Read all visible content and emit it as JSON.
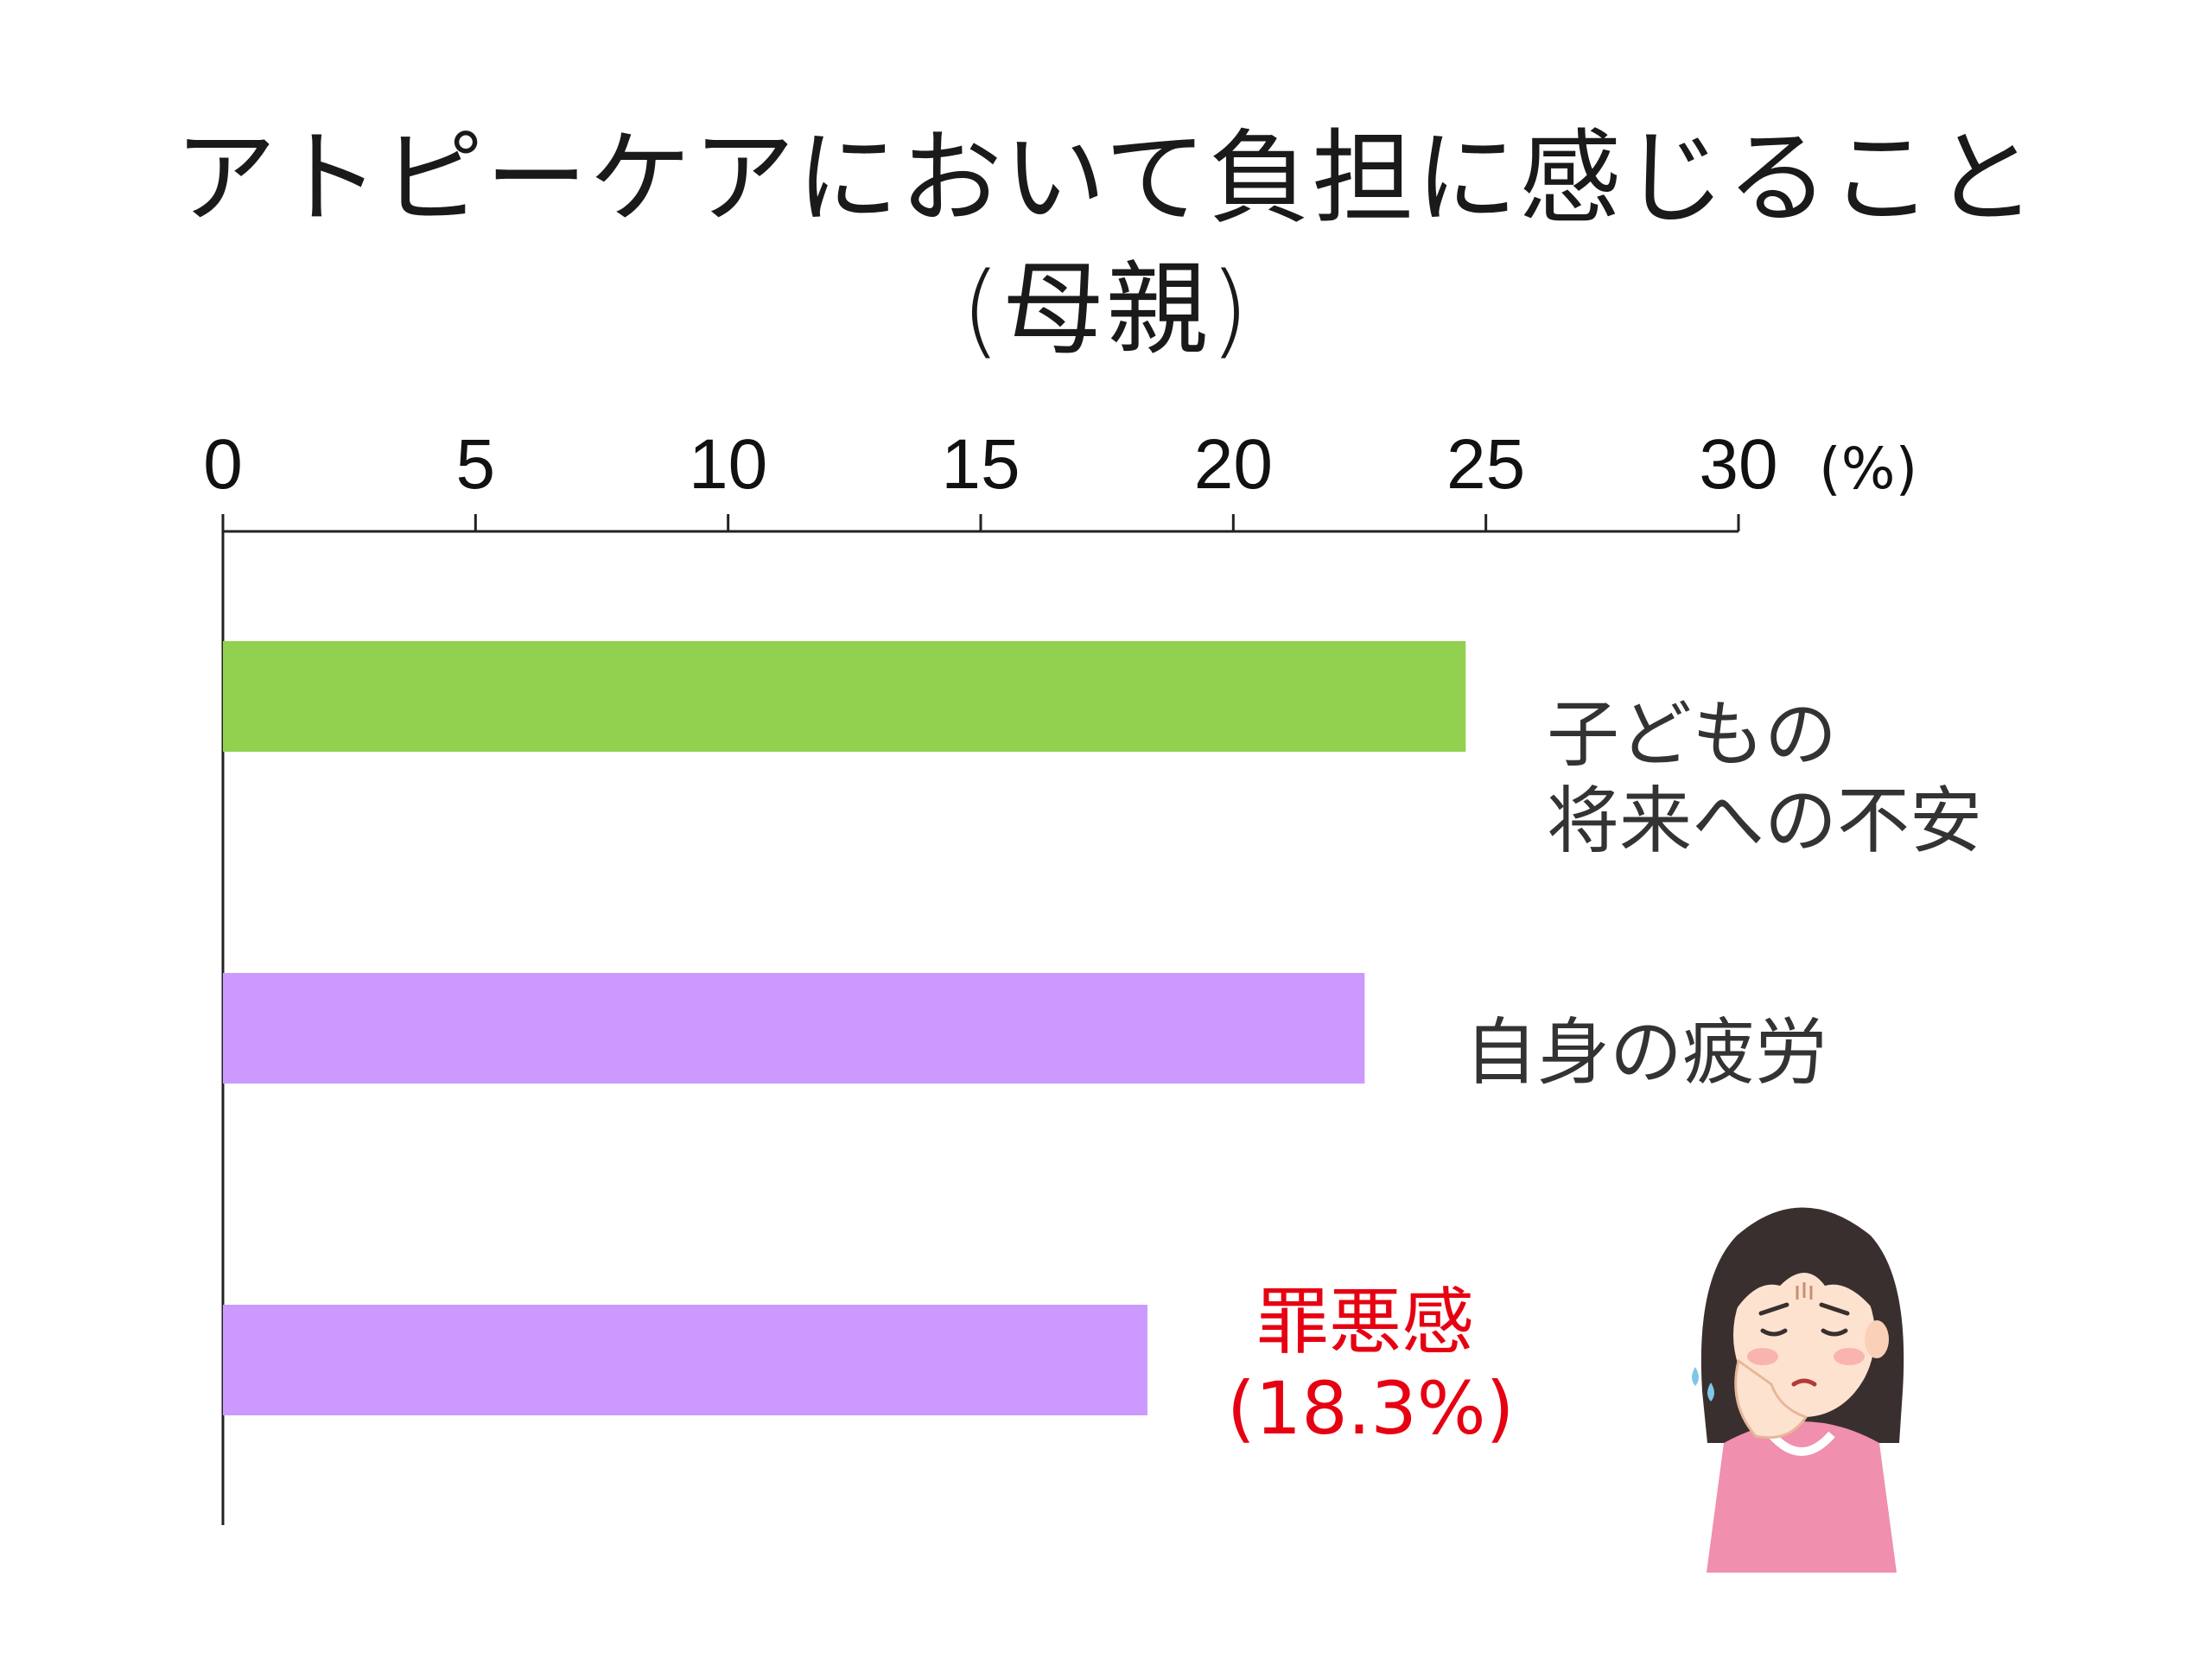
{
  "title": {
    "line1": "アトピーケアにおいて負担に感じること",
    "line2": "(母親)"
  },
  "chart_data": {
    "type": "bar",
    "orientation": "horizontal",
    "categories": [
      "子どもの将来への不安",
      "自身の疲労",
      "罪悪感"
    ],
    "category_lines": [
      [
        "子どもの",
        "将来への不安"
      ],
      [
        "自身の疲労"
      ],
      [
        "罪悪感",
        "(18.3%)"
      ]
    ],
    "values": [
      24.6,
      22.6,
      18.3
    ],
    "bar_colors": [
      "#92d050",
      "#cc99ff",
      "#cc99ff"
    ],
    "highlight_color": "#e60012",
    "xlim": [
      0,
      30
    ],
    "x_ticks": [
      0,
      5,
      10,
      15,
      20,
      25,
      30
    ],
    "x_tick_labels": [
      "0",
      "5",
      "10",
      "15",
      "20",
      "25",
      "30"
    ],
    "axis_position": "top",
    "unit_label": "(%)",
    "grid": false
  },
  "illustration": {
    "icon": "worried-mother-icon"
  }
}
